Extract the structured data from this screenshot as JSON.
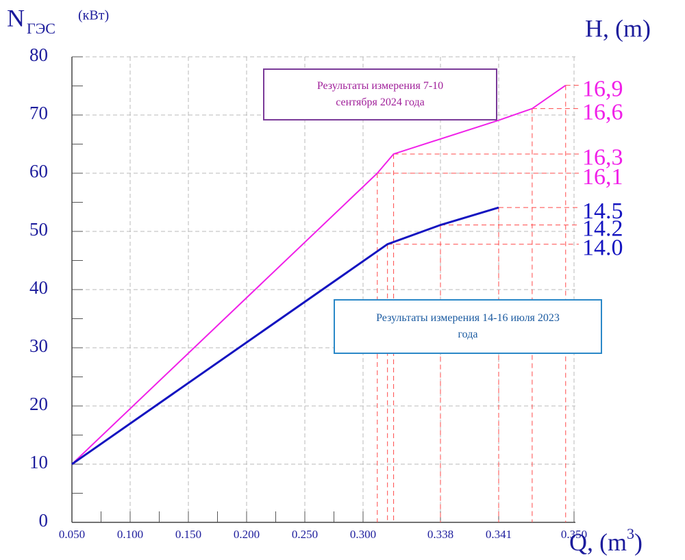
{
  "chart_data": {
    "type": "line",
    "y_label": "N",
    "y_label_sub": "ГЭС",
    "y_label_unit": "(кВт)",
    "y2_label": "H, (m)",
    "x_label_parts": [
      "Q, (m",
      "3",
      ")"
    ],
    "xlim": [
      0.05,
      0.35
    ],
    "xticks": [
      {
        "value": 0.05,
        "label": "0.050"
      },
      {
        "value": 0.1,
        "label": "0.100"
      },
      {
        "value": 0.15,
        "label": "0.150"
      },
      {
        "value": 0.2,
        "label": "0.200"
      },
      {
        "value": 0.25,
        "label": "0.250"
      },
      {
        "value": 0.3,
        "label": "0.300"
      },
      0.338,
      0.341,
      {
        "value": 0.35,
        "label": "0.350"
      }
    ],
    "ylim": [
      0,
      80
    ],
    "yticks": [
      0,
      10,
      20,
      30,
      40,
      50,
      60,
      70,
      80
    ],
    "grid": true,
    "series": [
      {
        "name": "Результаты измерения 7-10 сентября 2024 года",
        "color": "#f020e8",
        "x": [
          0.05,
          0.307,
          0.315,
          0.341,
          0.345,
          0.349
        ],
        "values": [
          10,
          60,
          63.3,
          69.1,
          71.1,
          75.1
        ],
        "head_labels": [
          null,
          "16,1",
          "16,3",
          null,
          "16,6",
          "16,9"
        ]
      },
      {
        "name": "Результаты измерения 14-16 июля 2023 года",
        "color": "#1414c0",
        "x": [
          0.05,
          0.312,
          0.338,
          0.341
        ],
        "values": [
          10,
          47.8,
          51.1,
          54.1
        ],
        "head_labels": [
          null,
          "14.0",
          "14.2",
          "14.5"
        ]
      }
    ]
  }
}
